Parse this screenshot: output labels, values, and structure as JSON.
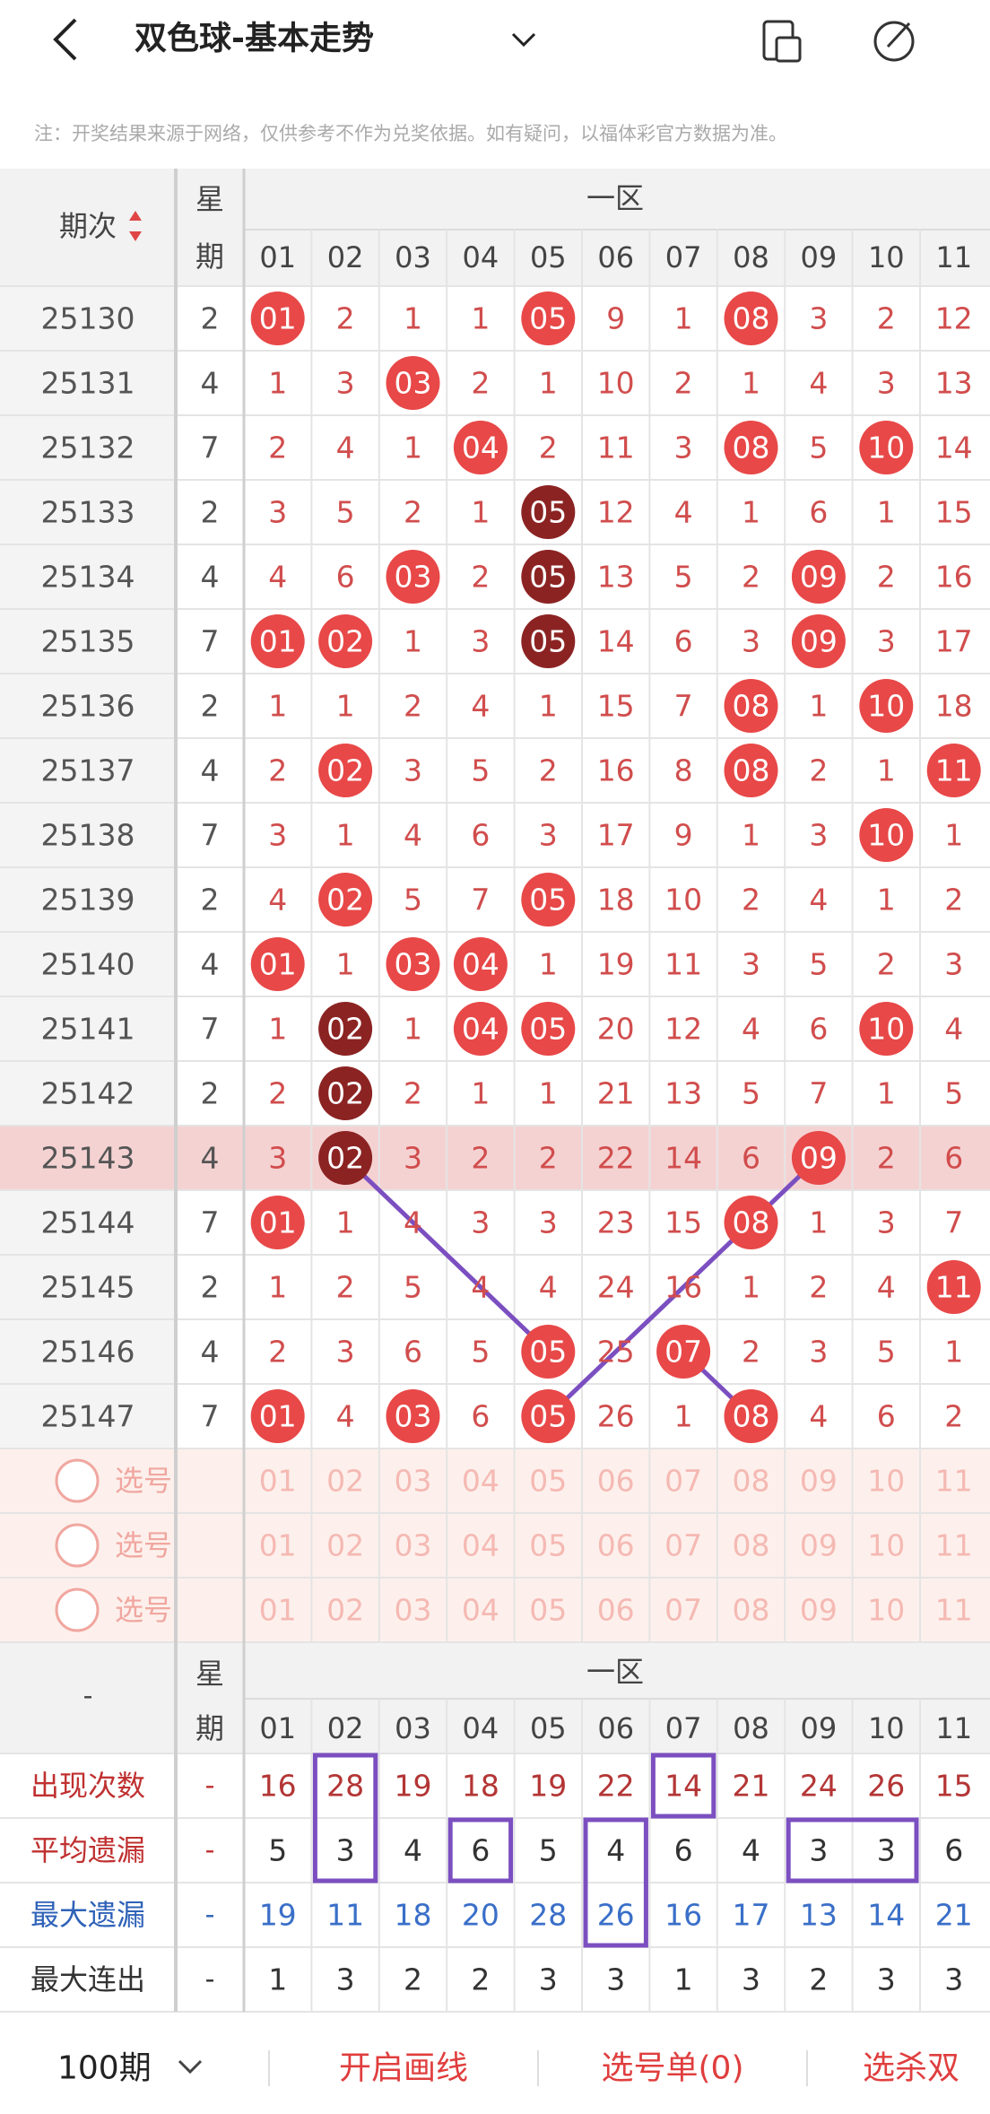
{
  "header": {
    "title": "双色球-基本走势"
  },
  "note": "注：开奖结果来源于网络，仅供参考不作为兑奖依据。如有疑问，以福体彩官方数据为准。",
  "table": {
    "period_header": "期次",
    "weekday_header": [
      "星",
      "期"
    ],
    "zone": "一区",
    "columns": [
      "01",
      "02",
      "03",
      "04",
      "05",
      "06",
      "07",
      "08",
      "09",
      "10",
      "11"
    ],
    "rows": [
      {
        "period": "25130",
        "weekday": "2",
        "cells": [
          "01",
          "2",
          "1",
          "1",
          "05",
          "9",
          "1",
          "08",
          "3",
          "2",
          "12"
        ]
      },
      {
        "period": "25131",
        "weekday": "4",
        "cells": [
          "1",
          "3",
          "03",
          "2",
          "1",
          "10",
          "2",
          "1",
          "4",
          "3",
          "13"
        ]
      },
      {
        "period": "25132",
        "weekday": "7",
        "cells": [
          "2",
          "4",
          "1",
          "04",
          "2",
          "11",
          "3",
          "08",
          "5",
          "10",
          "14"
        ]
      },
      {
        "period": "25133",
        "weekday": "2",
        "cells": [
          "3",
          "5",
          "2",
          "1",
          "05",
          "12",
          "4",
          "1",
          "6",
          "1",
          "15"
        ]
      },
      {
        "period": "25134",
        "weekday": "4",
        "cells": [
          "4",
          "6",
          "03",
          "2",
          "05",
          "13",
          "5",
          "2",
          "09",
          "2",
          "16"
        ]
      },
      {
        "period": "25135",
        "weekday": "7",
        "cells": [
          "01",
          "02",
          "1",
          "3",
          "05",
          "14",
          "6",
          "3",
          "09",
          "3",
          "17"
        ]
      },
      {
        "period": "25136",
        "weekday": "2",
        "cells": [
          "1",
          "1",
          "2",
          "4",
          "1",
          "15",
          "7",
          "08",
          "1",
          "10",
          "18"
        ]
      },
      {
        "period": "25137",
        "weekday": "4",
        "cells": [
          "2",
          "02",
          "3",
          "5",
          "2",
          "16",
          "8",
          "08",
          "2",
          "1",
          "11"
        ]
      },
      {
        "period": "25138",
        "weekday": "7",
        "cells": [
          "3",
          "1",
          "4",
          "6",
          "3",
          "17",
          "9",
          "1",
          "3",
          "10",
          "1"
        ]
      },
      {
        "period": "25139",
        "weekday": "2",
        "cells": [
          "4",
          "02",
          "5",
          "7",
          "05",
          "18",
          "10",
          "2",
          "4",
          "1",
          "2"
        ]
      },
      {
        "period": "25140",
        "weekday": "4",
        "cells": [
          "01",
          "1",
          "03",
          "04",
          "1",
          "19",
          "11",
          "3",
          "5",
          "2",
          "3"
        ]
      },
      {
        "period": "25141",
        "weekday": "7",
        "cells": [
          "1",
          "02",
          "1",
          "04",
          "05",
          "20",
          "12",
          "4",
          "6",
          "10",
          "4"
        ]
      },
      {
        "period": "25142",
        "weekday": "2",
        "cells": [
          "2",
          "02",
          "2",
          "1",
          "1",
          "21",
          "13",
          "5",
          "7",
          "1",
          "5"
        ]
      },
      {
        "period": "25143",
        "weekday": "4",
        "cells": [
          "3",
          "02",
          "3",
          "2",
          "2",
          "22",
          "14",
          "6",
          "09",
          "2",
          "6"
        ]
      },
      {
        "period": "25144",
        "weekday": "7",
        "cells": [
          "01",
          "1",
          "4",
          "3",
          "3",
          "23",
          "15",
          "08",
          "1",
          "3",
          "7"
        ]
      },
      {
        "period": "25145",
        "weekday": "2",
        "cells": [
          "1",
          "2",
          "5",
          "4",
          "4",
          "24",
          "16",
          "1",
          "2",
          "4",
          "11"
        ]
      },
      {
        "period": "25146",
        "weekday": "4",
        "cells": [
          "2",
          "3",
          "6",
          "5",
          "05",
          "25",
          "07",
          "2",
          "3",
          "5",
          "1"
        ]
      },
      {
        "period": "25147",
        "weekday": "7",
        "cells": [
          "01",
          "4",
          "03",
          "6",
          "05",
          "26",
          "1",
          "08",
          "4",
          "6",
          "2"
        ]
      }
    ]
  },
  "select_rows": [
    "选号",
    "选号",
    "选号"
  ],
  "stats": {
    "period_header": "-",
    "weekday_header": [
      "星",
      "期"
    ],
    "zone": "一区",
    "rows": [
      {
        "label": "出现次数",
        "weekday": "-",
        "values": [
          16,
          28,
          19,
          18,
          19,
          22,
          14,
          21,
          24,
          26,
          15
        ]
      },
      {
        "label": "平均遗漏",
        "weekday": "-",
        "values": [
          5,
          3,
          4,
          6,
          5,
          4,
          6,
          4,
          3,
          3,
          6
        ]
      },
      {
        "label": "最大遗漏",
        "weekday": "-",
        "values": [
          19,
          11,
          18,
          20,
          28,
          26,
          16,
          17,
          13,
          14,
          21
        ]
      },
      {
        "label": "最大连出",
        "weekday": "-",
        "values": [
          1,
          3,
          2,
          2,
          3,
          3,
          1,
          3,
          2,
          3,
          3
        ]
      }
    ]
  },
  "footer": {
    "period": "100期",
    "buttons": [
      "开启画线",
      "选号单(0)",
      "选杀双"
    ]
  }
}
